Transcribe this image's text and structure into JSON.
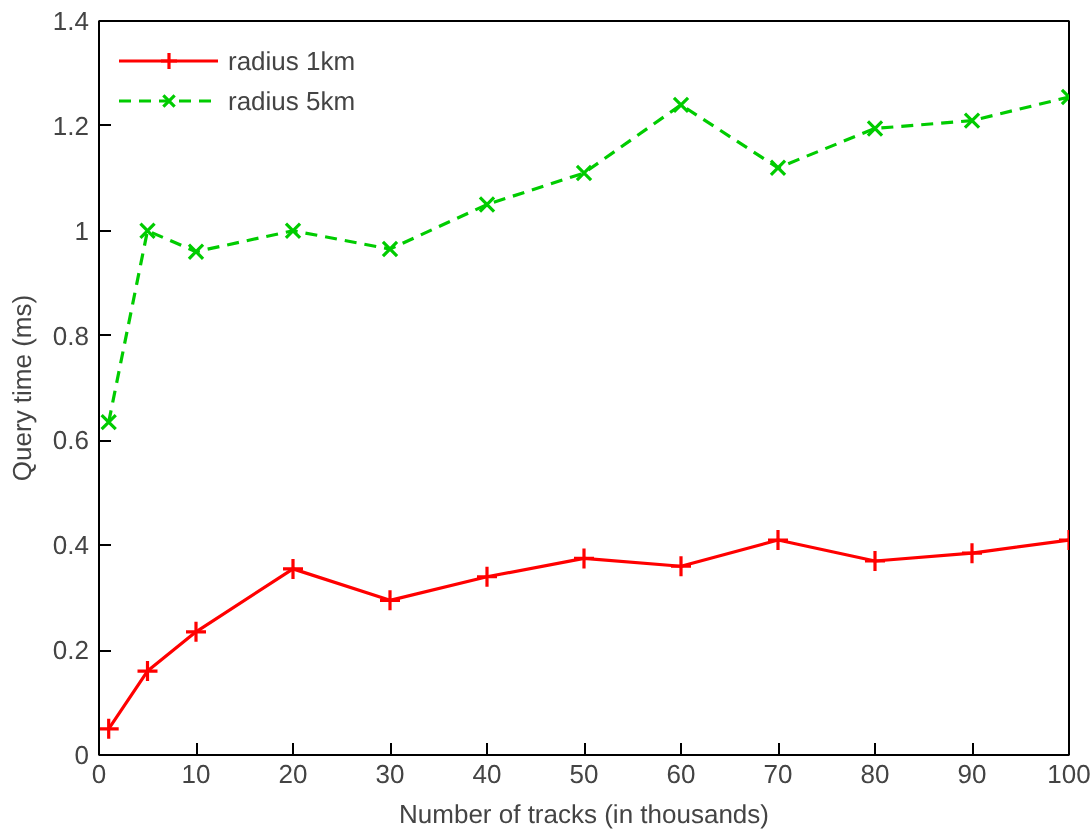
{
  "chart_data": {
    "type": "line",
    "xlabel": "Number of tracks (in thousands)",
    "ylabel": "Query time (ms)",
    "x": [
      1,
      5,
      10,
      20,
      30,
      40,
      50,
      60,
      70,
      80,
      90,
      100
    ],
    "series": [
      {
        "name": "radius 1km",
        "color": "#ff0000",
        "marker": "cross",
        "line_style": "solid",
        "values": [
          0.05,
          0.16,
          0.235,
          0.355,
          0.295,
          0.34,
          0.375,
          0.36,
          0.41,
          0.37,
          0.385,
          0.41
        ]
      },
      {
        "name": "radius 5km",
        "color": "#00cc00",
        "marker": "x",
        "line_style": "dashed",
        "values": [
          0.635,
          1.0,
          0.96,
          1.0,
          0.965,
          1.05,
          1.11,
          1.24,
          1.12,
          1.195,
          1.21,
          1.255
        ]
      }
    ],
    "xlim": [
      0,
      100
    ],
    "ylim": [
      0,
      1.4
    ],
    "xticks": [
      0,
      10,
      20,
      30,
      40,
      50,
      60,
      70,
      80,
      90,
      100
    ],
    "yticks": [
      0,
      0.2,
      0.4,
      0.6,
      0.8,
      1,
      1.2,
      1.4
    ],
    "grid": false,
    "legend": "top left"
  }
}
